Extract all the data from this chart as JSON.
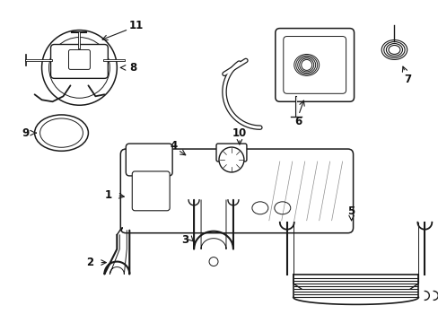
{
  "background_color": "#ffffff",
  "line_color": "#1a1a1a",
  "label_color": "#111111",
  "figsize": [
    4.89,
    3.6
  ],
  "dpi": 100
}
